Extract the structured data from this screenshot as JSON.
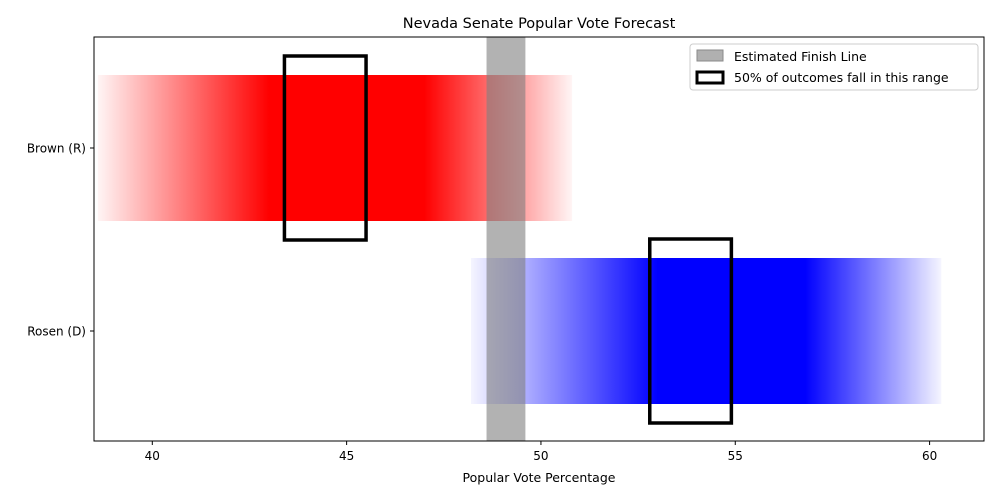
{
  "chart_data": {
    "type": "bar",
    "title": "Nevada Senate Popular Vote Forecast",
    "xlabel": "Popular Vote Percentage",
    "ylabel": "",
    "xlim": [
      38.5,
      61.4
    ],
    "xticks": [
      40,
      45,
      50,
      55,
      60
    ],
    "grid": false,
    "legend_position": "upper right",
    "finish_line": {
      "label": "Estimated Finish Line",
      "range": [
        48.6,
        49.6
      ],
      "color": "#b0b0b0"
    },
    "interquartile_label": "50% of outcomes fall in this range",
    "series": [
      {
        "name": "Brown (R)",
        "color": "#ff0000",
        "range_min": 38.6,
        "range_max": 50.8,
        "solid_range": [
          43.0,
          47.0
        ],
        "interquartile_range": [
          43.4,
          45.5
        ]
      },
      {
        "name": "Rosen (D)",
        "color": "#0000ff",
        "range_min": 48.2,
        "range_max": 60.3,
        "solid_range": [
          53.0,
          56.8
        ],
        "interquartile_range": [
          52.8,
          54.9
        ]
      }
    ]
  }
}
